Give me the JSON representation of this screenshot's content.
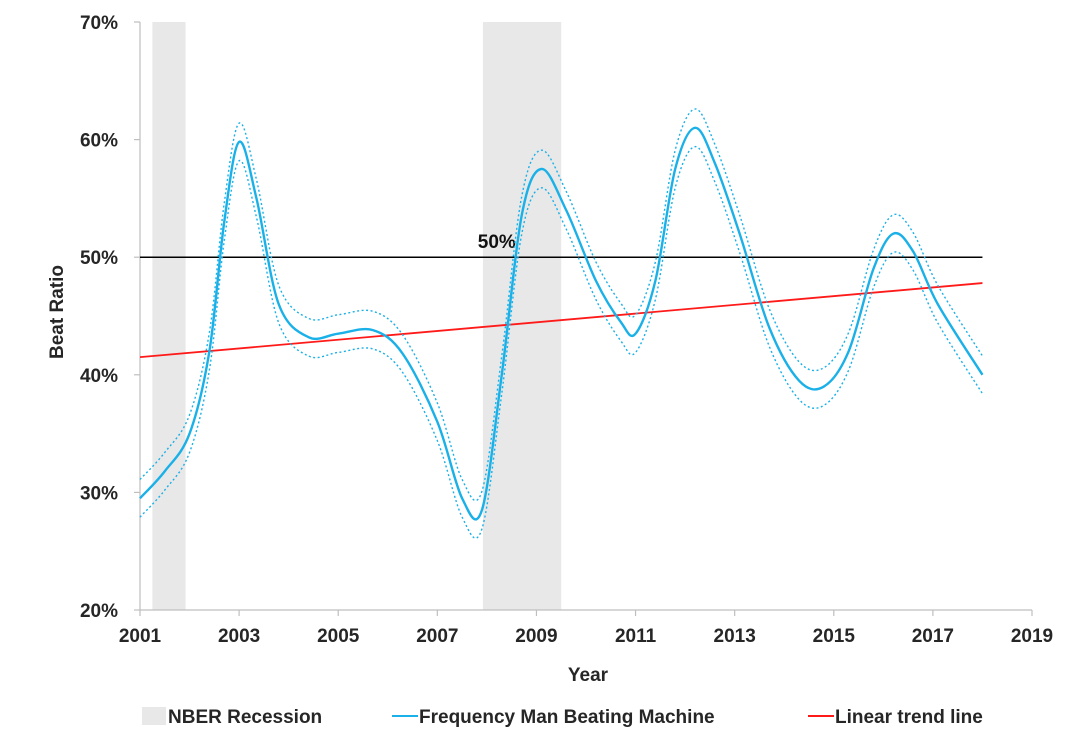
{
  "chart_data": {
    "type": "line",
    "title": "",
    "xlabel": "Year",
    "ylabel": "Beat Ratio",
    "xlim": [
      2001,
      2019
    ],
    "ylim": [
      20,
      70
    ],
    "x_ticks": [
      2001,
      2003,
      2005,
      2007,
      2009,
      2011,
      2013,
      2015,
      2017,
      2019
    ],
    "x_tick_labels": [
      "2001",
      "2003",
      "2005",
      "2007",
      "2009",
      "2011",
      "2013",
      "2015",
      "2017",
      "2019"
    ],
    "y_ticks": [
      20,
      30,
      40,
      50,
      60,
      70
    ],
    "y_tick_labels": [
      "20%",
      "30%",
      "40%",
      "50%",
      "60%",
      "70%"
    ],
    "recessions": [
      {
        "start": 2001.25,
        "end": 2001.92
      },
      {
        "start": 2007.92,
        "end": 2009.5
      }
    ],
    "reference_line": {
      "value": 50,
      "label": "50%",
      "label_x": 2008.2,
      "color": "#000000"
    },
    "trend_line": {
      "name": "Linear trend line",
      "color": "#ff1a1a",
      "x": [
        2001,
        2018
      ],
      "y": [
        41.5,
        47.8
      ]
    },
    "series": [
      {
        "name": "Frequency Man Beating Machine",
        "color": "#1ab0e8",
        "x": [
          2001,
          2001.5,
          2002,
          2002.4,
          2002.7,
          2003,
          2003.35,
          2003.8,
          2004.4,
          2005,
          2005.7,
          2006.3,
          2007,
          2007.5,
          2007.9,
          2008.3,
          2008.7,
          2009.1,
          2009.6,
          2010.2,
          2010.7,
          2011,
          2011.4,
          2011.8,
          2012.2,
          2012.6,
          2013.1,
          2013.7,
          2014.3,
          2014.8,
          2015.3,
          2015.8,
          2016.2,
          2016.6,
          2017.1,
          2018
        ],
        "y": [
          29.5,
          31.8,
          35.0,
          42.0,
          53.0,
          59.8,
          55.0,
          46.0,
          43.2,
          43.5,
          43.8,
          41.8,
          36.0,
          29.5,
          28.5,
          40.0,
          53.5,
          57.5,
          54.0,
          48.0,
          44.5,
          43.5,
          48.0,
          57.5,
          61.0,
          58.0,
          52.0,
          44.0,
          39.5,
          39.0,
          42.0,
          49.0,
          52.0,
          50.5,
          46.0,
          40.0
        ],
        "band": 1.6
      }
    ],
    "legend": [
      {
        "label": "NBER Recession",
        "kind": "box",
        "color": "#e8e8e8"
      },
      {
        "label": "Frequency Man Beating Machine",
        "kind": "line",
        "color": "#1ab0e8"
      },
      {
        "label": "Linear trend line",
        "kind": "line",
        "color": "#ff1a1a"
      }
    ]
  }
}
